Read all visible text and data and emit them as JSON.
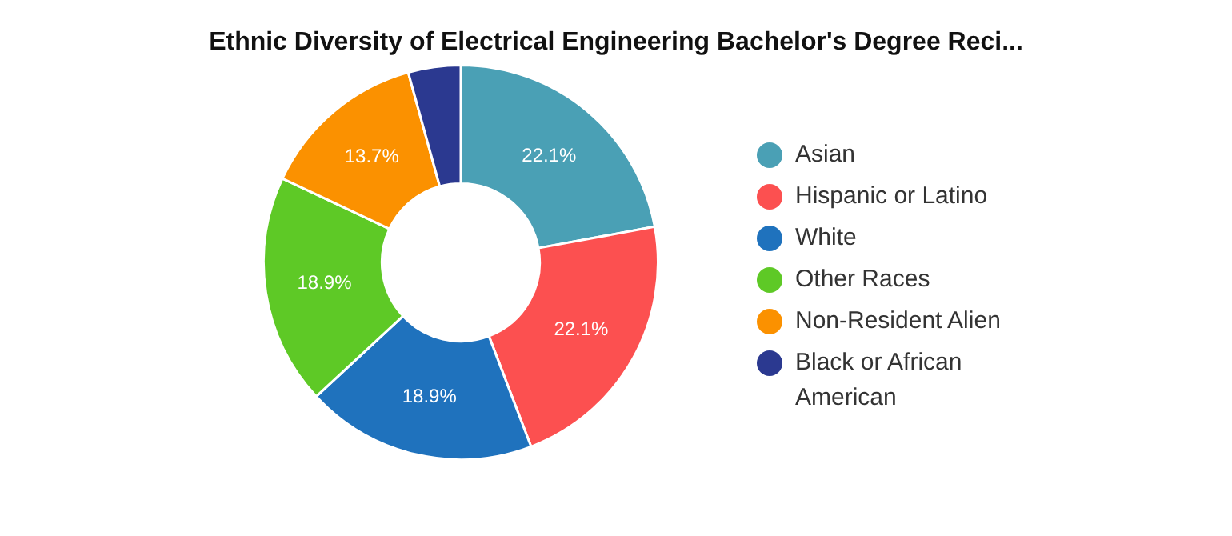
{
  "chart_data": {
    "type": "donut",
    "title": "Ethnic Diversity of Electrical Engineering Bachelor's Degree Reci...",
    "categories": [
      "Asian",
      "Hispanic or Latino",
      "White",
      "Other Races",
      "Non-Resident Alien",
      "Black or African American"
    ],
    "values": [
      22.1,
      22.1,
      18.9,
      18.9,
      13.7,
      4.3
    ],
    "value_labels": [
      "22.1%",
      "22.1%",
      "18.9%",
      "18.9%",
      "13.7%",
      null
    ],
    "colors": [
      "#4aa0b5",
      "#fc5050",
      "#1f72bd",
      "#5ec926",
      "#fb9100",
      "#2b3990"
    ],
    "legend": "right"
  }
}
